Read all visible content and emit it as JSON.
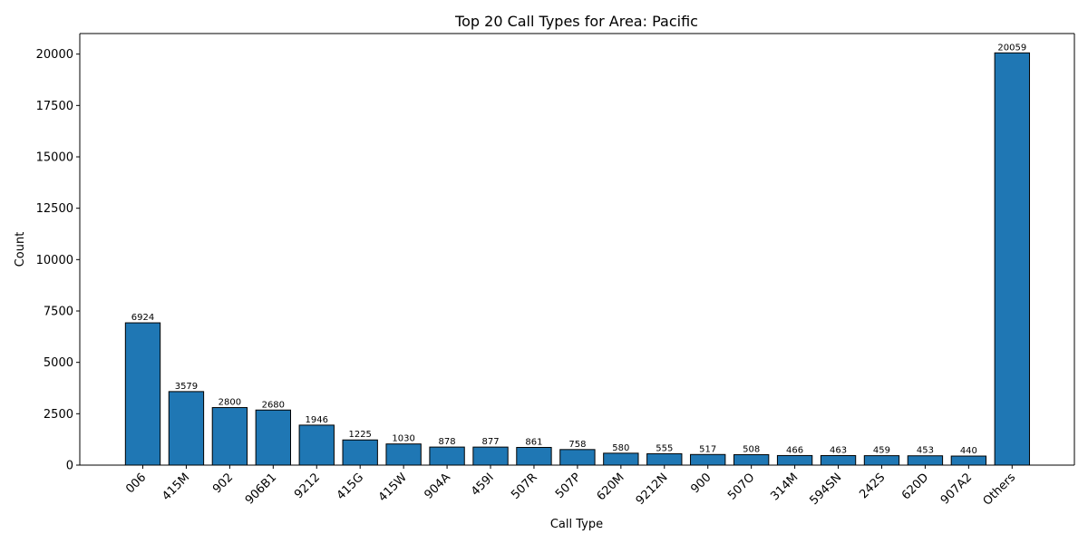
{
  "chart_data": {
    "type": "bar",
    "title": "Top 20 Call Types for Area: Pacific",
    "xlabel": "Call Type",
    "ylabel": "Count",
    "ylim": [
      0,
      21000
    ],
    "yticks": [
      0,
      2500,
      5000,
      7500,
      10000,
      12500,
      15000,
      17500,
      20000
    ],
    "bar_color": "#1f77b4",
    "edge_color": "#000000",
    "grid": false,
    "categories": [
      "006",
      "415M",
      "902",
      "906B1",
      "9212",
      "415G",
      "415W",
      "904A",
      "459I",
      "507R",
      "507P",
      "620M",
      "9212N",
      "900",
      "507O",
      "314M",
      "594SN",
      "242S",
      "620D",
      "907A2",
      "Others"
    ],
    "values": [
      6924,
      3579,
      2800,
      2680,
      1946,
      1225,
      1030,
      878,
      877,
      861,
      758,
      580,
      555,
      517,
      508,
      466,
      463,
      459,
      453,
      440,
      20059
    ]
  }
}
